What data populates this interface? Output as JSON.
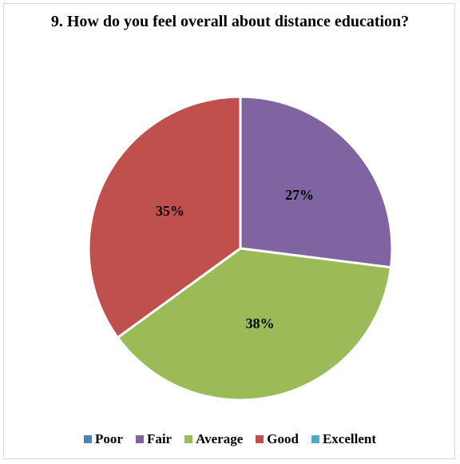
{
  "chart_data": {
    "type": "pie",
    "title": "9. How do you feel overall about distance education?",
    "categories": [
      "Poor",
      "Fair",
      "Average",
      "Good",
      "Excellent"
    ],
    "values": [
      0,
      27,
      38,
      35,
      0
    ],
    "labels": [
      "",
      "27%",
      "38%",
      "35%",
      ""
    ],
    "colors": [
      "#4f81bd",
      "#8064a2",
      "#9bbb59",
      "#c0504d",
      "#4bacc6"
    ],
    "legend_position": "bottom"
  }
}
